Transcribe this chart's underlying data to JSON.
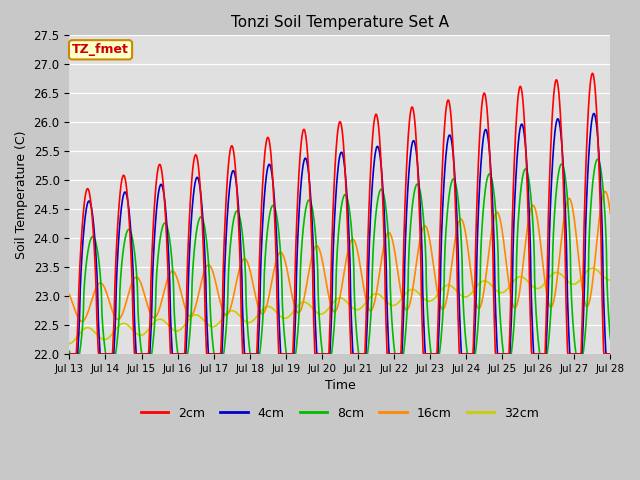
{
  "title": "Tonzi Soil Temperature Set A",
  "xlabel": "Time",
  "ylabel": "Soil Temperature (C)",
  "ylim": [
    22.0,
    27.5
  ],
  "annotation_text": "TZ_fmet",
  "annotation_color": "#cc0000",
  "annotation_bg": "#ffffcc",
  "annotation_border": "#cc8800",
  "series": {
    "2cm": {
      "color": "#ff0000",
      "linewidth": 1.2
    },
    "4cm": {
      "color": "#0000cc",
      "linewidth": 1.2
    },
    "8cm": {
      "color": "#00bb00",
      "linewidth": 1.2
    },
    "16cm": {
      "color": "#ff8800",
      "linewidth": 1.2
    },
    "32cm": {
      "color": "#cccc00",
      "linewidth": 1.2
    }
  },
  "xtick_labels": [
    "Jul 13",
    "Jul 14",
    "Jul 15",
    "Jul 16",
    "Jul 17",
    "Jul 18",
    "Jul 19",
    "Jul 20",
    "Jul 21",
    "Jul 22",
    "Jul 23",
    "Jul 24",
    "Jul 25",
    "Jul 26",
    "Jul 27",
    "Jul 28"
  ],
  "ytick_values": [
    22.0,
    22.5,
    23.0,
    23.5,
    24.0,
    24.5,
    25.0,
    25.5,
    26.0,
    26.5,
    27.0,
    27.5
  ],
  "days": 15
}
